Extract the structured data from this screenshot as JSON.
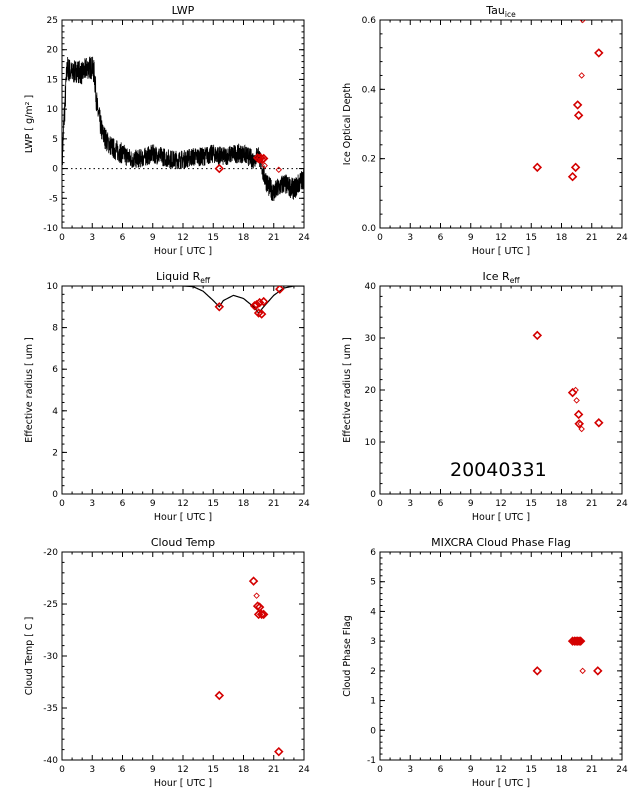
{
  "date_stamp": "20040331",
  "chart_data": [
    {
      "id": "lwp",
      "type": "line",
      "title": "LWP",
      "title_sub": "",
      "xlabel": "Hour [ UTC ]",
      "ylabel": "LWP [ g/m² ]",
      "xlim": [
        0,
        24
      ],
      "ylim": [
        -10,
        25
      ],
      "xticks": [
        0,
        3,
        6,
        9,
        12,
        15,
        18,
        21,
        24
      ],
      "yticks": [
        -10,
        -5,
        0,
        5,
        10,
        15,
        20,
        25
      ],
      "zero_line": true,
      "series": [
        {
          "name": "",
          "kind": "noisy_line",
          "color": "#000000",
          "x": [
            0,
            0.2,
            0.5,
            1,
            1.5,
            2,
            2.5,
            3,
            3.2,
            3.5,
            4,
            4.5,
            5,
            6,
            7,
            8,
            9,
            10,
            11,
            12,
            13,
            14,
            15,
            16,
            17,
            18,
            19,
            19.5,
            20,
            20.5,
            21,
            22,
            23,
            24
          ],
          "y": [
            1,
            8,
            17,
            16,
            16.5,
            16,
            17,
            17,
            16,
            10,
            6,
            4.5,
            3.5,
            2.5,
            1.5,
            1.8,
            2.5,
            2,
            1.5,
            1.5,
            2,
            2,
            2.5,
            2,
            2.5,
            2.5,
            1.5,
            2.5,
            -1,
            -3,
            -4,
            -2.5,
            -3.5,
            -1.5
          ],
          "noise": [
            2,
            3,
            2.2,
            2,
            2,
            2,
            2,
            2,
            2.2,
            2.2,
            2,
            1.8,
            1.8,
            1.8,
            1.6,
            1.6,
            1.6,
            1.6,
            1.6,
            1.6,
            1.6,
            1.6,
            1.6,
            1.6,
            1.6,
            1.6,
            1.6,
            1.6,
            1.8,
            1.8,
            1.8,
            1.8,
            1.8,
            1.8
          ]
        },
        {
          "name": "",
          "kind": "markers",
          "color": "#d40000",
          "points": [
            [
              15.6,
              0,
              "big"
            ],
            [
              19.4,
              1.8,
              "big"
            ],
            [
              19.55,
              1.6,
              "big"
            ],
            [
              19.7,
              1.8,
              "big"
            ],
            [
              19.85,
              1.5,
              "big"
            ],
            [
              20.0,
              1.7,
              "big"
            ],
            [
              20.1,
              0.5,
              "small"
            ],
            [
              21.5,
              -0.2,
              "small"
            ]
          ]
        }
      ]
    },
    {
      "id": "tau",
      "type": "scatter",
      "title": "Tau",
      "title_sub": "ice",
      "xlabel": "Hour [ UTC ]",
      "ylabel": "Ice Optical Depth",
      "xlim": [
        0,
        24
      ],
      "ylim": [
        0,
        0.6
      ],
      "xticks": [
        0,
        3,
        6,
        9,
        12,
        15,
        18,
        21,
        24
      ],
      "yticks": [
        0.0,
        0.2,
        0.4,
        0.6
      ],
      "ytick_labels": [
        "0.0",
        "0.2",
        "0.4",
        "0.6"
      ],
      "series": [
        {
          "name": "",
          "kind": "markers",
          "color": "#d40000",
          "points": [
            [
              15.6,
              0.175,
              "big"
            ],
            [
              19.1,
              0.148,
              "big"
            ],
            [
              19.4,
              0.175,
              "big"
            ],
            [
              19.6,
              0.355,
              "big"
            ],
            [
              19.7,
              0.325,
              "big"
            ],
            [
              20.0,
              0.44,
              "small"
            ],
            [
              20.1,
              0.6,
              "small"
            ],
            [
              21.7,
              0.505,
              "big"
            ]
          ]
        }
      ]
    },
    {
      "id": "liq_reff",
      "type": "scatter",
      "title": "Liquid R",
      "title_sub": "eff",
      "xlabel": "Hour [ UTC ]",
      "ylabel": "Effective radius [ um ]",
      "xlim": [
        0,
        24
      ],
      "ylim": [
        0,
        10
      ],
      "xticks": [
        0,
        3,
        6,
        9,
        12,
        15,
        18,
        21,
        24
      ],
      "yticks": [
        0,
        2,
        4,
        6,
        8,
        10
      ],
      "series": [
        {
          "name": "",
          "kind": "curve",
          "color": "#000000",
          "x": [
            12,
            13,
            14,
            15,
            15.6,
            16,
            17,
            18,
            19,
            19.5,
            20,
            21,
            22,
            23,
            24
          ],
          "y": [
            10,
            9.97,
            9.75,
            9.3,
            9.0,
            9.3,
            9.55,
            9.4,
            9.0,
            8.7,
            9.0,
            9.55,
            9.9,
            10,
            10
          ]
        },
        {
          "name": "",
          "kind": "markers",
          "color": "#d40000",
          "points": [
            [
              15.6,
              9.0,
              "big"
            ],
            [
              19.1,
              9.05,
              "big"
            ],
            [
              19.3,
              9.1,
              "big"
            ],
            [
              19.5,
              8.7,
              "big"
            ],
            [
              19.6,
              9.2,
              "big"
            ],
            [
              19.8,
              8.65,
              "big"
            ],
            [
              20.0,
              9.25,
              "big"
            ],
            [
              21.6,
              9.85,
              "big"
            ]
          ]
        }
      ]
    },
    {
      "id": "ice_reff",
      "type": "scatter",
      "title": "Ice R",
      "title_sub": "eff",
      "xlabel": "Hour [ UTC ]",
      "ylabel": "Effective radius [ um ]",
      "xlim": [
        0,
        24
      ],
      "ylim": [
        0,
        40
      ],
      "xticks": [
        0,
        3,
        6,
        9,
        12,
        15,
        18,
        21,
        24
      ],
      "yticks": [
        0,
        10,
        20,
        30,
        40
      ],
      "series": [
        {
          "name": "",
          "kind": "markers",
          "color": "#d40000",
          "points": [
            [
              15.6,
              30.5,
              "big"
            ],
            [
              19.1,
              19.5,
              "big"
            ],
            [
              19.4,
              20.0,
              "small"
            ],
            [
              19.5,
              18.0,
              "small"
            ],
            [
              19.7,
              15.3,
              "big"
            ],
            [
              19.75,
              13.5,
              "big"
            ],
            [
              19.9,
              13.5,
              "small"
            ],
            [
              20.0,
              12.5,
              "small"
            ],
            [
              21.7,
              13.7,
              "big"
            ]
          ]
        }
      ]
    },
    {
      "id": "cloud_temp",
      "type": "scatter",
      "title": "Cloud Temp",
      "title_sub": "",
      "xlabel": "Hour [ UTC ]",
      "ylabel": "Cloud Temp [ C ]",
      "xlim": [
        0,
        24
      ],
      "ylim": [
        -40,
        -20
      ],
      "xticks": [
        0,
        3,
        6,
        9,
        12,
        15,
        18,
        21,
        24
      ],
      "yticks": [
        -40,
        -35,
        -30,
        -25,
        -20
      ],
      "series": [
        {
          "name": "",
          "kind": "markers",
          "color": "#d40000",
          "points": [
            [
              15.6,
              -33.8,
              "big"
            ],
            [
              19.0,
              -22.8,
              "big"
            ],
            [
              19.3,
              -24.2,
              "small"
            ],
            [
              19.4,
              -25.2,
              "big"
            ],
            [
              19.6,
              -25.3,
              "big"
            ],
            [
              19.5,
              -26.0,
              "big"
            ],
            [
              19.8,
              -26.0,
              "big"
            ],
            [
              20.0,
              -26.0,
              "big"
            ],
            [
              21.5,
              -39.2,
              "big"
            ]
          ]
        }
      ]
    },
    {
      "id": "phase_flag",
      "type": "scatter",
      "title": "MIXCRA Cloud Phase Flag",
      "title_sub": "",
      "xlabel": "Hour [ UTC ]",
      "ylabel": "Cloud Phase Flag",
      "xlim": [
        0,
        24
      ],
      "ylim": [
        -1,
        6
      ],
      "xticks": [
        0,
        3,
        6,
        9,
        12,
        15,
        18,
        21,
        24
      ],
      "yticks": [
        -1,
        0,
        1,
        2,
        3,
        4,
        5,
        6
      ],
      "series": [
        {
          "name": "",
          "kind": "markers",
          "color": "#d40000",
          "points": [
            [
              15.6,
              2,
              "big"
            ],
            [
              19.1,
              3,
              "big"
            ],
            [
              19.3,
              3,
              "big"
            ],
            [
              19.45,
              3,
              "big"
            ],
            [
              19.6,
              3,
              "big"
            ],
            [
              19.75,
              3,
              "big"
            ],
            [
              19.9,
              3,
              "big"
            ],
            [
              20.1,
              2,
              "small"
            ],
            [
              21.6,
              2,
              "big"
            ]
          ]
        }
      ]
    }
  ]
}
